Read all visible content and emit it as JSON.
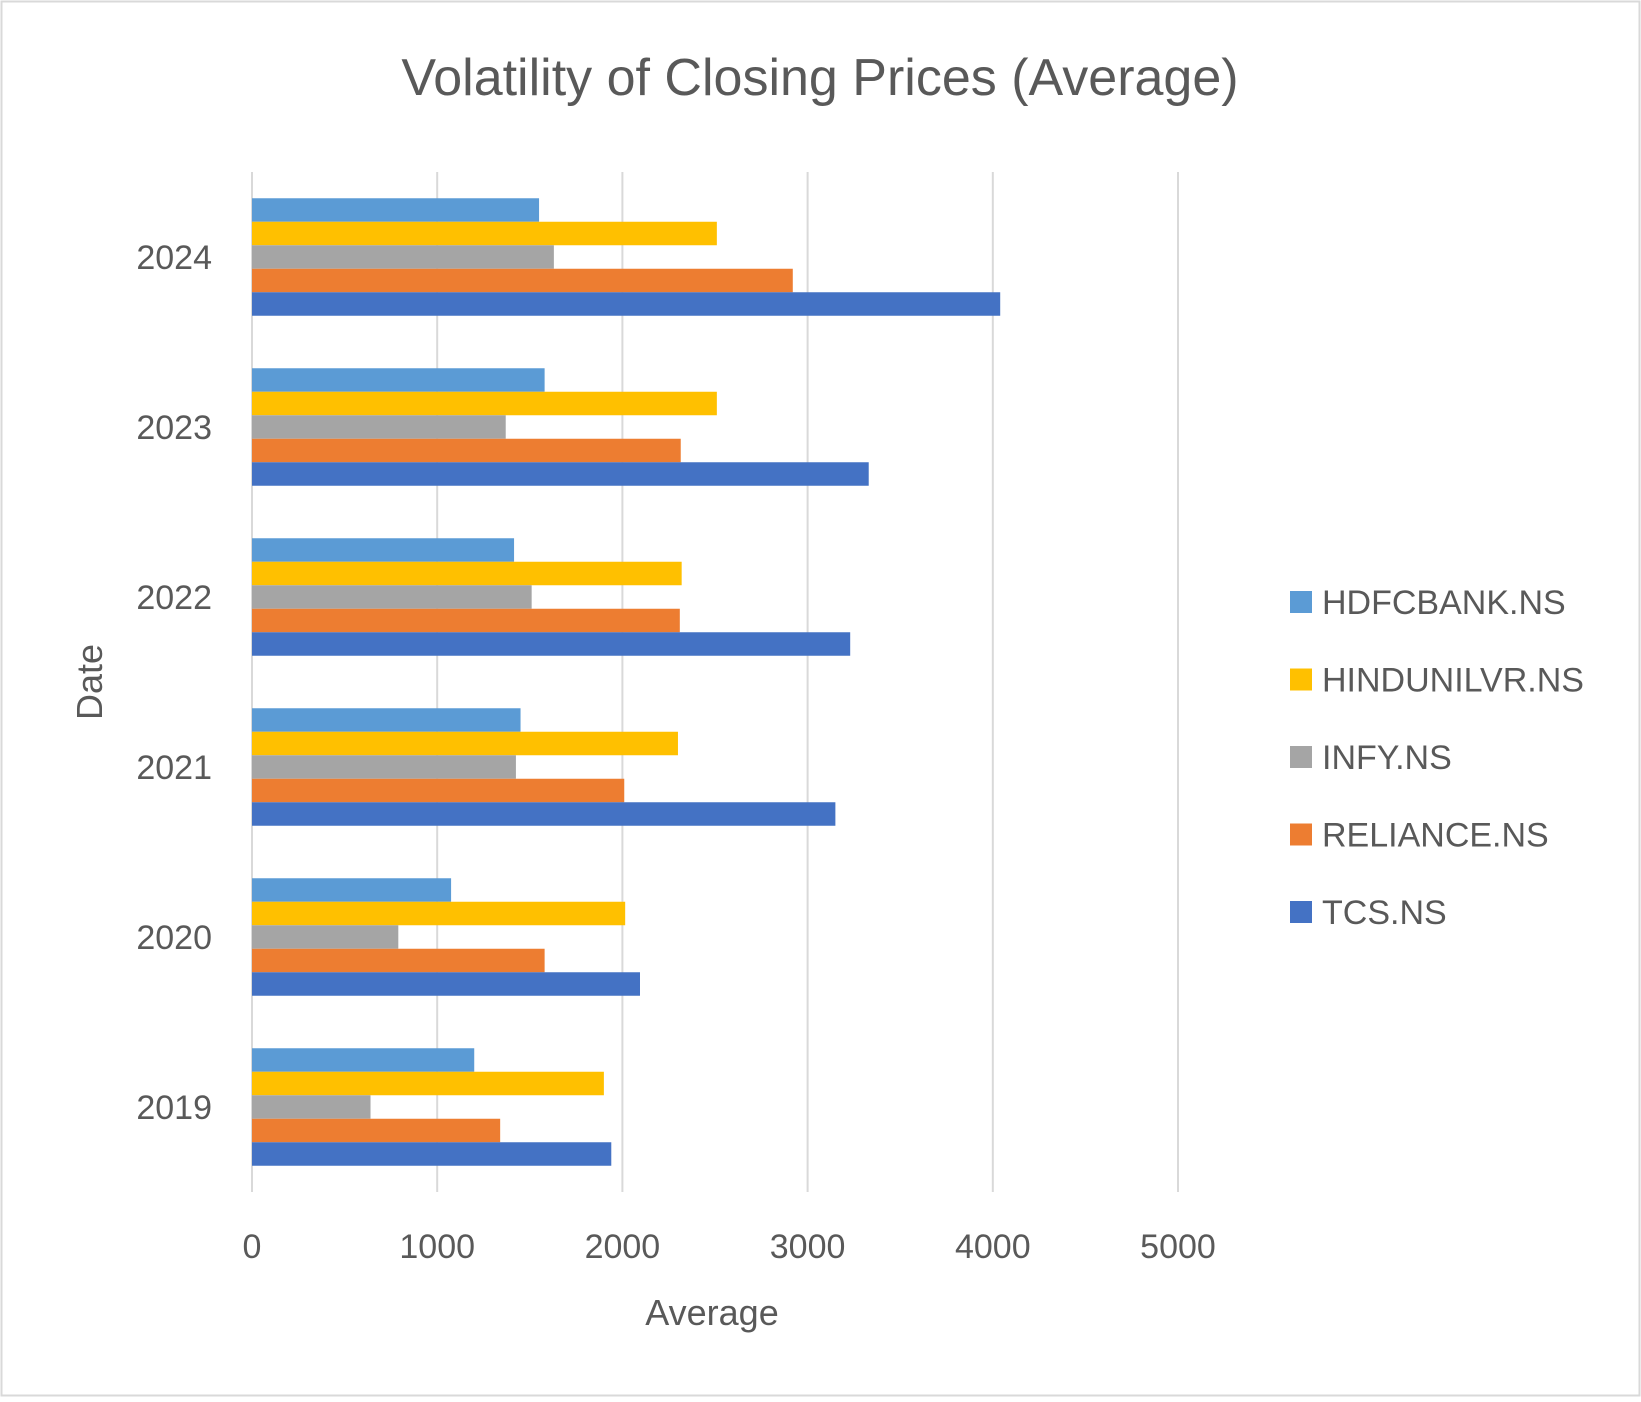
{
  "chart_data": {
    "type": "bar",
    "orientation": "horizontal",
    "title": "Volatility of Closing Prices (Average)",
    "xlabel": "Average",
    "ylabel": "Date",
    "xlim": [
      0,
      5000
    ],
    "x_ticks": [
      "0",
      "1000",
      "2000",
      "3000",
      "4000",
      "5000"
    ],
    "categories": [
      "2024",
      "2023",
      "2022",
      "2021",
      "2020",
      "2019"
    ],
    "grid": "vertical",
    "legend_position": "right",
    "series": [
      {
        "name": "HDFCBANK.NS",
        "color": "#5B9BD5",
        "values": [
          1550,
          1580,
          1415,
          1450,
          1075,
          1200
        ]
      },
      {
        "name": "HINDUNILVR.NS",
        "color": "#FFC000",
        "values": [
          2510,
          2510,
          2320,
          2300,
          2015,
          1900
        ]
      },
      {
        "name": "INFY.NS",
        "color": "#A5A5A5",
        "values": [
          1630,
          1370,
          1510,
          1425,
          790,
          640
        ]
      },
      {
        "name": "RELIANCE.NS",
        "color": "#ED7D31",
        "values": [
          2920,
          2315,
          2310,
          2010,
          1580,
          1340
        ]
      },
      {
        "name": "TCS.NS",
        "color": "#4472C4",
        "values": [
          4040,
          3330,
          3230,
          3150,
          2095,
          1940
        ]
      }
    ]
  }
}
